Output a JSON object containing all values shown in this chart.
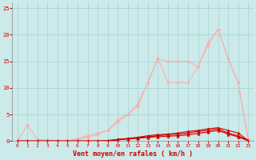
{
  "xlabel": "Vent moyen/en rafales ( km/h )",
  "xlim": [
    -0.5,
    23.5
  ],
  "ylim": [
    0,
    26
  ],
  "yticks": [
    0,
    5,
    10,
    15,
    20,
    25
  ],
  "xticks": [
    0,
    1,
    2,
    3,
    4,
    5,
    6,
    7,
    8,
    9,
    10,
    11,
    12,
    13,
    14,
    15,
    16,
    17,
    18,
    19,
    20,
    21,
    22,
    23
  ],
  "bg_color": "#cceaea",
  "grid_color": "#aad4d4",
  "series": [
    {
      "x": [
        0,
        1,
        2,
        3,
        4,
        5,
        6,
        7,
        8,
        9,
        10,
        11,
        12,
        13,
        14,
        15,
        16,
        17,
        18,
        19,
        20,
        21,
        22,
        23
      ],
      "y": [
        0,
        3,
        0.3,
        0.2,
        0.1,
        0.1,
        0.1,
        0.1,
        0.1,
        0.1,
        0.3,
        0.5,
        0.5,
        0.8,
        1.0,
        1.0,
        1.0,
        1.0,
        1.5,
        1.8,
        2.0,
        1.5,
        0.5,
        0.2
      ],
      "color": "#ffaaaa",
      "marker": "D",
      "markersize": 1.8,
      "lw": 0.7
    },
    {
      "x": [
        0,
        1,
        2,
        3,
        4,
        5,
        6,
        7,
        8,
        9,
        10,
        11,
        12,
        13,
        14,
        15,
        16,
        17,
        18,
        19,
        20,
        21,
        22,
        23
      ],
      "y": [
        0,
        0,
        0,
        0,
        0,
        0,
        0.5,
        1,
        1.5,
        2,
        4,
        5,
        7,
        11,
        15.5,
        15,
        15,
        15,
        14,
        18.5,
        21,
        15.5,
        11,
        0.3
      ],
      "color": "#ffaaaa",
      "marker": "D",
      "markersize": 1.8,
      "lw": 0.7
    },
    {
      "x": [
        0,
        1,
        2,
        3,
        4,
        5,
        6,
        7,
        8,
        9,
        10,
        11,
        12,
        13,
        14,
        15,
        16,
        17,
        18,
        19,
        20,
        21,
        22,
        23
      ],
      "y": [
        0,
        0,
        0,
        0,
        0,
        0,
        0.3,
        0.7,
        1.2,
        2,
        3.5,
        5,
        6.5,
        11,
        15.5,
        11,
        11,
        11,
        14,
        18,
        21,
        15.5,
        11,
        0.3
      ],
      "color": "#ffaaaa",
      "marker": "D",
      "markersize": 1.8,
      "lw": 0.7
    },
    {
      "x": [
        0,
        1,
        2,
        3,
        4,
        5,
        6,
        7,
        8,
        9,
        10,
        11,
        12,
        13,
        14,
        15,
        16,
        17,
        18,
        19,
        20,
        21,
        22,
        23
      ],
      "y": [
        0,
        0,
        0,
        0,
        0,
        0,
        0,
        0,
        0,
        0,
        0.3,
        0.5,
        0.7,
        1,
        1.2,
        1.3,
        1.5,
        1.8,
        2,
        2.3,
        2.5,
        2,
        1.5,
        0.1
      ],
      "color": "#cc0000",
      "marker": "^",
      "markersize": 2.5,
      "lw": 0.8
    },
    {
      "x": [
        0,
        1,
        2,
        3,
        4,
        5,
        6,
        7,
        8,
        9,
        10,
        11,
        12,
        13,
        14,
        15,
        16,
        17,
        18,
        19,
        20,
        21,
        22,
        23
      ],
      "y": [
        0,
        0,
        0,
        0,
        0,
        0,
        0,
        0,
        0,
        0,
        0.2,
        0.4,
        0.6,
        0.8,
        1.0,
        1.2,
        1.3,
        1.5,
        1.8,
        2.0,
        2.3,
        1.5,
        1.0,
        0.1
      ],
      "color": "#cc0000",
      "marker": "^",
      "markersize": 2.5,
      "lw": 0.8
    },
    {
      "x": [
        0,
        1,
        2,
        3,
        4,
        5,
        6,
        7,
        8,
        9,
        10,
        11,
        12,
        13,
        14,
        15,
        16,
        17,
        18,
        19,
        20,
        21,
        22,
        23
      ],
      "y": [
        0,
        0,
        0,
        0,
        0,
        0,
        0,
        0,
        0,
        0.1,
        0.3,
        0.4,
        0.5,
        0.7,
        0.8,
        0.9,
        1.0,
        1.2,
        1.4,
        1.7,
        2.0,
        1.3,
        0.8,
        0.05
      ],
      "color": "#cc0000",
      "marker": "^",
      "markersize": 2.5,
      "lw": 0.8
    }
  ]
}
